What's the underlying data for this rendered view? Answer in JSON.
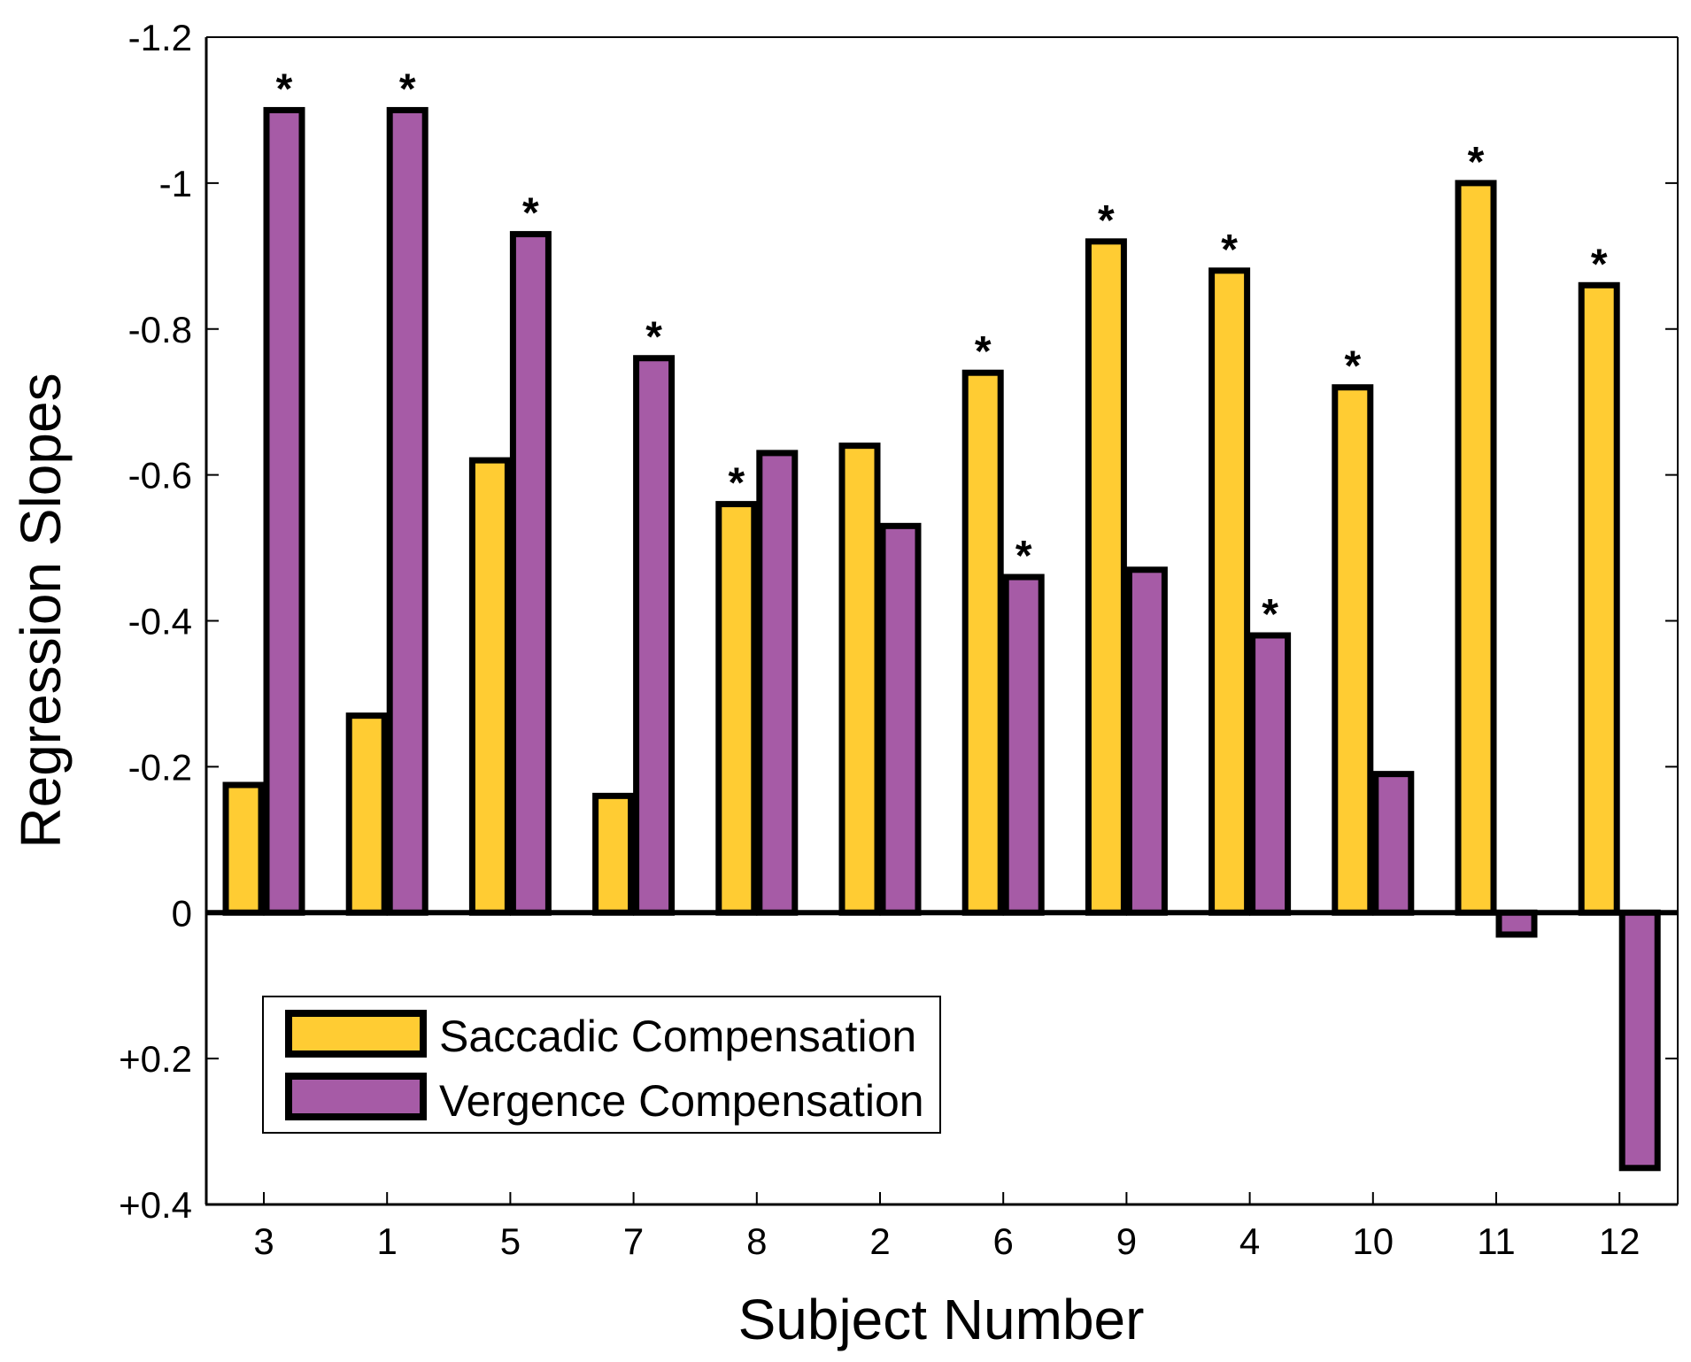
{
  "chart_data": {
    "type": "bar",
    "title": "",
    "xlabel": "Subject Number",
    "ylabel": "Regression Slopes",
    "categories": [
      "3",
      "1",
      "5",
      "7",
      "8",
      "2",
      "6",
      "9",
      "4",
      "10",
      "11",
      "12"
    ],
    "series": [
      {
        "name": "Saccadic Compensation",
        "color": "#FFCC33",
        "values": [
          -0.175,
          -0.27,
          -0.62,
          -0.16,
          -0.56,
          -0.64,
          -0.74,
          -0.92,
          -0.88,
          -0.72,
          -1.0,
          -0.86
        ],
        "significant": [
          false,
          false,
          false,
          false,
          true,
          false,
          true,
          true,
          true,
          true,
          true,
          true
        ]
      },
      {
        "name": "Vergence Compensation",
        "color": "#A65BA6",
        "values": [
          -1.1,
          -1.1,
          -0.93,
          -0.76,
          -0.63,
          -0.53,
          -0.46,
          -0.47,
          -0.38,
          -0.19,
          0.03,
          0.35
        ],
        "significant": [
          true,
          true,
          true,
          true,
          false,
          false,
          true,
          false,
          true,
          false,
          false,
          false
        ]
      }
    ],
    "ylim": [
      -1.2,
      0.4
    ],
    "y_inverted": true,
    "y_ticks": [
      -1.2,
      -1.0,
      -0.8,
      -0.6,
      -0.4,
      -0.2,
      0,
      0.2,
      0.4
    ],
    "y_tick_labels": [
      "-1.2",
      "-1",
      "-0.8",
      "-0.6",
      "-0.4",
      "-0.2",
      "0",
      "+0.2",
      "+0.4"
    ],
    "significance_marker": "*",
    "grid": false,
    "legend_position": "bottom-left"
  }
}
